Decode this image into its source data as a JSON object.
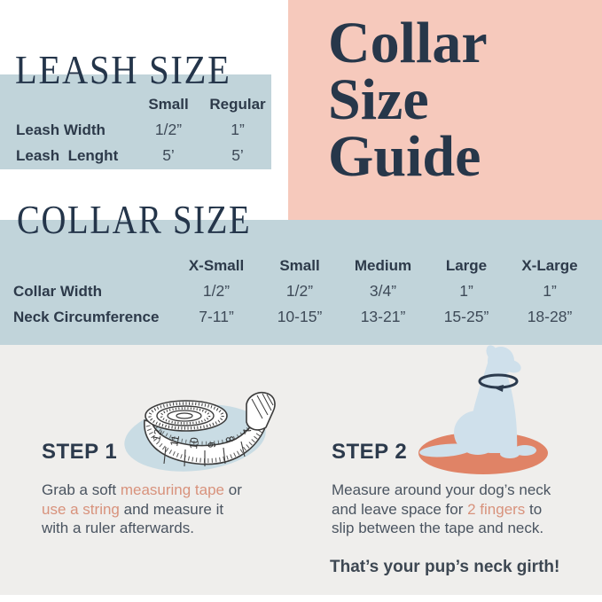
{
  "colors": {
    "pink_panel": "#f6c9bc",
    "band_blue": "#c1d4da",
    "steps_background": "#efeeec",
    "navy_heading": "#27374a",
    "table_text": "#3e4a58",
    "body_text": "#4a5460",
    "accent_salmon": "#d8927c",
    "ground_ellipse": "#e08366",
    "dog_blue": "#cfe0eb",
    "blob_blue": "#c9dce4"
  },
  "pink_panel": {
    "title_line1": "Collar",
    "title_line2": "Size",
    "title_line3": "Guide"
  },
  "leash_section": {
    "title": "LEASH SIZE",
    "table": {
      "headers": [
        "Small",
        "Regular"
      ],
      "rows": [
        {
          "label": "Leash Width",
          "values": [
            "1/2”",
            "1”"
          ]
        },
        {
          "label": "Leash  Lenght",
          "values": [
            "5’",
            "5’"
          ]
        }
      ]
    }
  },
  "collar_section": {
    "title": "COLLAR SIZE",
    "table": {
      "headers": [
        "X-Small",
        "Small",
        "Medium",
        "Large",
        "X-Large"
      ],
      "rows": [
        {
          "label": "Collar Width",
          "values": [
            "1/2”",
            "1/2”",
            "3/4”",
            "1”",
            "1”"
          ]
        },
        {
          "label": "Neck Circumference",
          "values": [
            "7-11”",
            "10-15”",
            "13-21”",
            "15-25”",
            "18-28”"
          ]
        }
      ]
    }
  },
  "steps": {
    "step1": {
      "label": "STEP 1",
      "line1": [
        {
          "t": "Grab a soft ",
          "a": false
        },
        {
          "t": "measuring tape",
          "a": true
        },
        {
          "t": " or",
          "a": false
        }
      ],
      "line2": [
        {
          "t": "use a string",
          "a": true
        },
        {
          "t": " and measure it",
          "a": false
        }
      ],
      "line3": [
        {
          "t": "with a ruler afterwards.",
          "a": false
        }
      ]
    },
    "step2": {
      "label": "STEP 2",
      "line1": [
        {
          "t": "Measure around your dog’s neck",
          "a": false
        }
      ],
      "line2": [
        {
          "t": "and leave space for ",
          "a": false
        },
        {
          "t": "2 fingers",
          "a": true
        },
        {
          "t": " to",
          "a": false
        }
      ],
      "line3": [
        {
          "t": "slip between the tape and neck.",
          "a": false
        }
      ],
      "footnote": "That’s your pup’s neck girth!"
    }
  },
  "illustrations": {
    "tape_numbers": [
      "12",
      "11",
      "10",
      "9",
      "8",
      "7"
    ]
  }
}
